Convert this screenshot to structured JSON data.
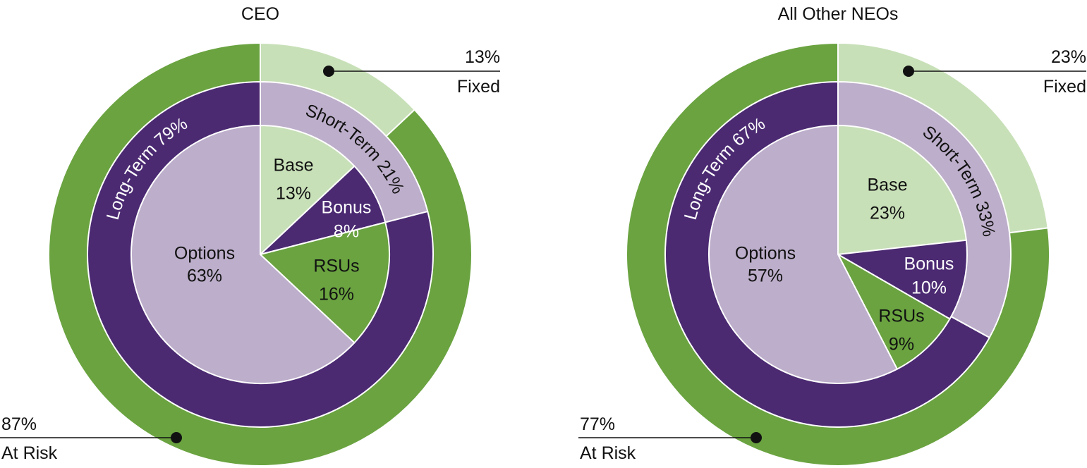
{
  "colors": {
    "dark_green": "#6aa340",
    "light_green": "#c8e0b8",
    "dark_purple": "#4b2a72",
    "light_purple": "#bdaecb",
    "text_dark": "#111111",
    "text_light": "#ffffff"
  },
  "chart_data": [
    {
      "type": "pie",
      "title": "CEO",
      "outer_ring": [
        {
          "name": "Fixed",
          "value": 13,
          "label": "13%",
          "color": "light_green"
        },
        {
          "name": "At Risk",
          "value": 87,
          "label": "87%",
          "color": "dark_green"
        }
      ],
      "middle_ring": [
        {
          "name": "Short-Term",
          "value": 21,
          "label": "Short-Term 21%",
          "color": "light_purple"
        },
        {
          "name": "Long-Term",
          "value": 79,
          "label": "Long-Term 79%",
          "color": "dark_purple"
        }
      ],
      "inner_pie": [
        {
          "name": "Base",
          "value": 13,
          "label": "Base",
          "pct": "13%",
          "color": "light_green"
        },
        {
          "name": "Bonus",
          "value": 8,
          "label": "Bonus",
          "pct": "8%",
          "color": "dark_purple"
        },
        {
          "name": "RSUs",
          "value": 16,
          "label": "RSUs",
          "pct": "16%",
          "color": "dark_green"
        },
        {
          "name": "Options",
          "value": 63,
          "label": "Options",
          "pct": "63%",
          "color": "light_purple"
        }
      ],
      "callouts": {
        "fixed": {
          "value": "13%",
          "label": "Fixed"
        },
        "at_risk": {
          "value": "87%",
          "label": "At Risk"
        }
      }
    },
    {
      "type": "pie",
      "title": "All Other NEOs",
      "outer_ring": [
        {
          "name": "Fixed",
          "value": 23,
          "label": "23%",
          "color": "light_green"
        },
        {
          "name": "At Risk",
          "value": 77,
          "label": "77%",
          "color": "dark_green"
        }
      ],
      "middle_ring": [
        {
          "name": "Short-Term",
          "value": 33,
          "label": "Short-Term 33%",
          "color": "light_purple"
        },
        {
          "name": "Long-Term",
          "value": 67,
          "label": "Long-Term 67%",
          "color": "dark_purple"
        }
      ],
      "inner_pie": [
        {
          "name": "Base",
          "value": 23,
          "label": "Base",
          "pct": "23%",
          "color": "light_green"
        },
        {
          "name": "Bonus",
          "value": 10,
          "label": "Bonus",
          "pct": "10%",
          "color": "dark_purple"
        },
        {
          "name": "RSUs",
          "value": 9,
          "label": "RSUs",
          "pct": "9%",
          "color": "dark_green"
        },
        {
          "name": "Options",
          "value": 57,
          "label": "Options",
          "pct": "57%",
          "color": "light_purple"
        }
      ],
      "callouts": {
        "fixed": {
          "value": "23%",
          "label": "Fixed"
        },
        "at_risk": {
          "value": "77%",
          "label": "At Risk"
        }
      }
    }
  ]
}
